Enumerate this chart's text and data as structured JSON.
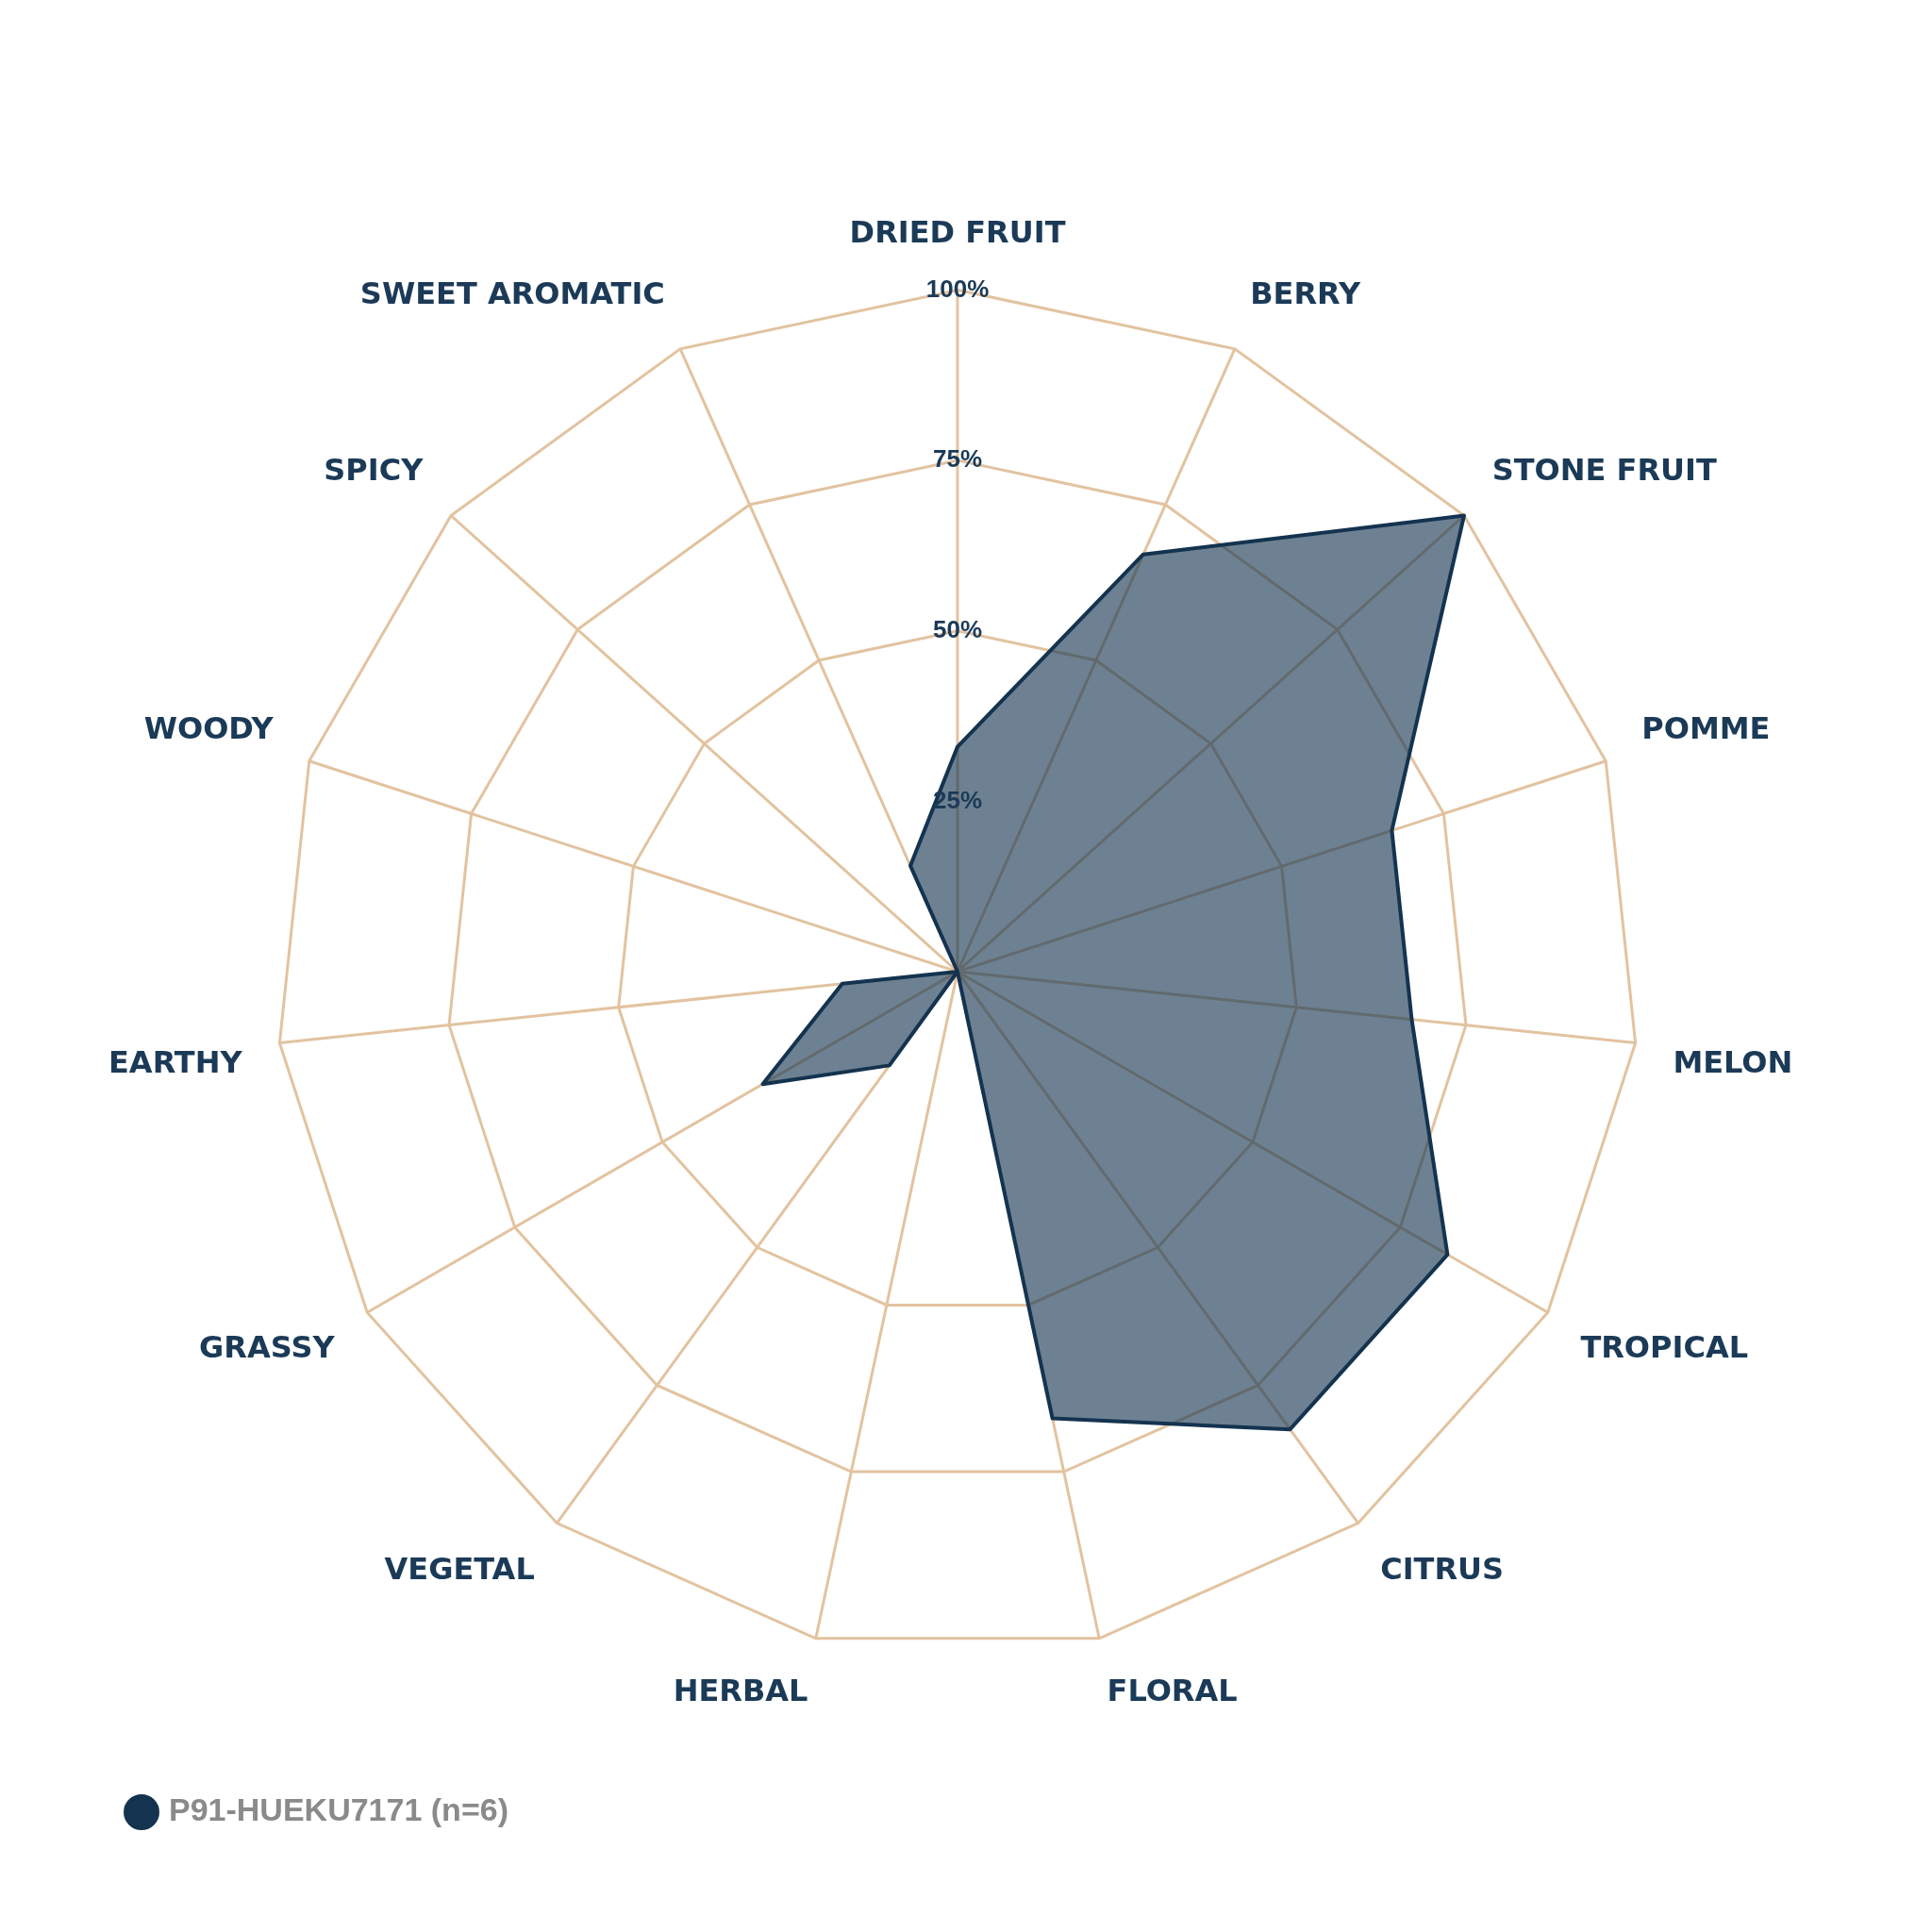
{
  "chart_data": {
    "type": "radar",
    "categories": [
      "DRIED FRUIT",
      "BERRY",
      "STONE FRUIT",
      "POMME",
      "MELON",
      "TROPICAL",
      "CITRUS",
      "FLORAL",
      "HERBAL",
      "VEGETAL",
      "GRASSY",
      "EARTHY",
      "WOODY",
      "SPICY",
      "SWEET AROMATIC"
    ],
    "series": [
      {
        "name": "P91-HUEKU7171 (n=6)",
        "color": "#14334f",
        "values": [
          33,
          67,
          100,
          67,
          67,
          83,
          83,
          67,
          0,
          17,
          33,
          17,
          0,
          0,
          17
        ]
      }
    ],
    "ylim": [
      0,
      100
    ],
    "yticks": [
      {
        "value": 25,
        "label": "25%"
      },
      {
        "value": 50,
        "label": "50%"
      },
      {
        "value": 75,
        "label": "75%"
      },
      {
        "value": 100,
        "label": "100%"
      }
    ],
    "grid": true,
    "legend": "bottom left",
    "marker": "none",
    "line_style": "solid"
  }
}
